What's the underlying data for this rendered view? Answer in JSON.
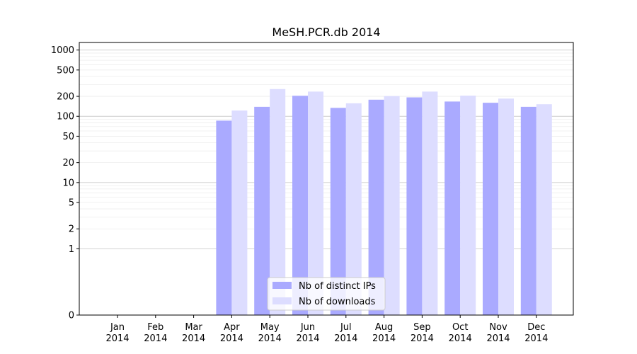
{
  "chart_data": {
    "type": "bar",
    "title": "MeSH.PCR.db 2014",
    "xlabel": "",
    "ylabel": "",
    "y_scale": "symlog",
    "ylim": [
      0,
      1300
    ],
    "y_ticks": [
      0,
      1,
      2,
      5,
      10,
      20,
      50,
      100,
      200,
      500,
      1000
    ],
    "grid": "horizontal",
    "legend_position": "bottom-center",
    "categories": [
      "Jan\n2014",
      "Feb\n2014",
      "Mar\n2014",
      "Apr\n2014",
      "May\n2014",
      "Jun\n2014",
      "Jul\n2014",
      "Aug\n2014",
      "Sep\n2014",
      "Oct\n2014",
      "Nov\n2014",
      "Dec\n2014"
    ],
    "category_lines": [
      [
        "Jan",
        "2014"
      ],
      [
        "Feb",
        "2014"
      ],
      [
        "Mar",
        "2014"
      ],
      [
        "Apr",
        "2014"
      ],
      [
        "May",
        "2014"
      ],
      [
        "Jun",
        "2014"
      ],
      [
        "Jul",
        "2014"
      ],
      [
        "Aug",
        "2014"
      ],
      [
        "Sep",
        "2014"
      ],
      [
        "Oct",
        "2014"
      ],
      [
        "Nov",
        "2014"
      ],
      [
        "Dec",
        "2014"
      ]
    ],
    "series": [
      {
        "name": "Nb of distinct IPs",
        "color": "#aaaaff",
        "values": [
          0,
          0,
          0,
          86,
          139,
          204,
          134,
          178,
          193,
          167,
          160,
          139
        ]
      },
      {
        "name": "Nb of downloads",
        "color": "#ddddff",
        "values": [
          0,
          0,
          0,
          122,
          258,
          236,
          157,
          202,
          236,
          205,
          185,
          152
        ]
      }
    ]
  }
}
